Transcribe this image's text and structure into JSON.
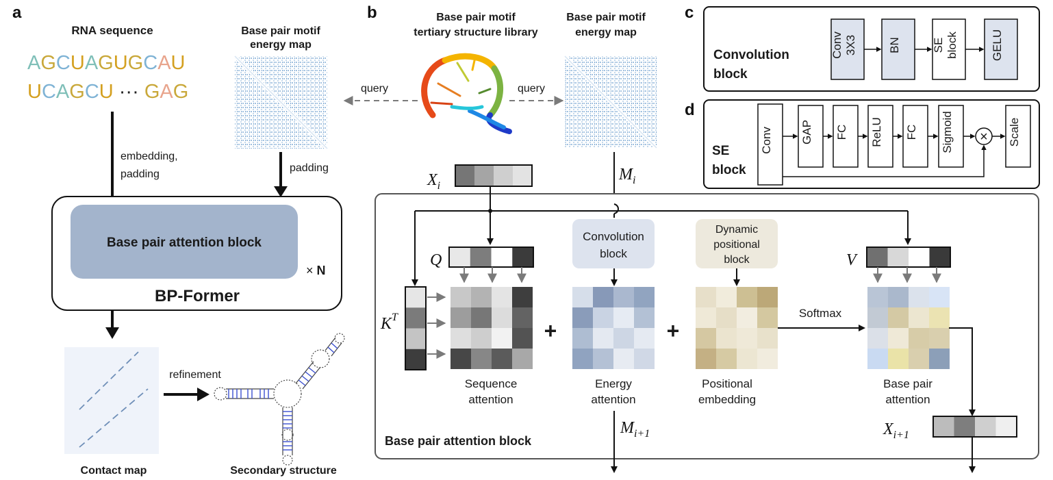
{
  "panels": {
    "a": "a",
    "b": "b",
    "c": "c",
    "d": "d"
  },
  "panel_a": {
    "rna_title": "RNA sequence",
    "seq_line1": [
      {
        "ch": "A",
        "color": "#7fbfb8"
      },
      {
        "ch": "G",
        "color": "#c9a83a"
      },
      {
        "ch": "C",
        "color": "#7fb3d5"
      },
      {
        "ch": "U",
        "color": "#d4a020"
      },
      {
        "ch": "A",
        "color": "#7fbfb8"
      },
      {
        "ch": "G",
        "color": "#c9a83a"
      },
      {
        "ch": "U",
        "color": "#d4a020"
      },
      {
        "ch": "G",
        "color": "#c9a83a"
      },
      {
        "ch": "C",
        "color": "#7fb3d5"
      },
      {
        "ch": "A",
        "color": "#e8a48c"
      },
      {
        "ch": "U",
        "color": "#d4a020"
      }
    ],
    "seq_line2": [
      {
        "ch": "U",
        "color": "#d4a020"
      },
      {
        "ch": "C",
        "color": "#7fb3d5"
      },
      {
        "ch": "A",
        "color": "#7fbfb8"
      },
      {
        "ch": "G",
        "color": "#c9a83a"
      },
      {
        "ch": "C",
        "color": "#7fb3d5"
      },
      {
        "ch": "U",
        "color": "#d4a020"
      },
      {
        "ch": " ··· ",
        "color": "#222222"
      },
      {
        "ch": "G",
        "color": "#c9a83a"
      },
      {
        "ch": "A",
        "color": "#e8a48c"
      },
      {
        "ch": "G",
        "color": "#c9a83a"
      }
    ],
    "energy_map_title_1": "Base pair motif",
    "energy_map_title_2": "energy map",
    "embedding_1": "embedding,",
    "embedding_2": "padding",
    "padding": "padding",
    "attention_block": "Base pair attention block",
    "times_n": "× ",
    "n": "N",
    "bpformer": "BP-Former",
    "refinement": "refinement",
    "contact_map": "Contact map",
    "secondary_structure": "Secondary structure",
    "query_left": "query"
  },
  "panel_b": {
    "library_title_1": "Base pair motif",
    "library_title_2": "tertiary structure library",
    "energy_map_title_1": "Base pair motif",
    "energy_map_title_2": "energy map",
    "query_right": "query",
    "xi": "X",
    "xi_sub": "i",
    "mi": "M",
    "mi_sub": "i",
    "q": "Q",
    "kt": "K",
    "kt_sup": "T",
    "v": "V",
    "conv_block_1": "Convolution",
    "conv_block_2": "block",
    "dyn_1": "Dynamic",
    "dyn_2": "positional",
    "dyn_3": "block",
    "softmax": "Softmax",
    "seq_att_1": "Sequence",
    "seq_att_2": "attention",
    "energy_att_1": "Energy",
    "energy_att_2": "attention",
    "pos_emb_1": "Positional",
    "pos_emb_2": "embedding",
    "bp_att_1": "Base pair",
    "bp_att_2": "attention",
    "mi1": "M",
    "mi1_sub": "i+1",
    "xi1": "X",
    "xi1_sub": "i+1",
    "block_title": "Base pair attention block",
    "plus": "+",
    "xi_cells": [
      "#767676",
      "#a5a5a5",
      "#cfcfcf",
      "#e3e3e3"
    ],
    "q_cells": [
      "#e8e8e8",
      "#7d7d7d",
      "#ffffff",
      "#3b3b3b"
    ],
    "k_cells": [
      "#e6e6e6",
      "#7b7b7b",
      "#c4c4c4",
      "#3d3d3d"
    ],
    "v_cells": [
      "#707070",
      "#d8d8d8",
      "#ffffff",
      "#3a3a3a"
    ],
    "xi1_cells": [
      "#bcbcbc",
      "#7e7e7e",
      "#cfcfcf",
      "#efefef"
    ],
    "seq_matrix": [
      [
        "#c8c8c8",
        "#b3b3b3",
        "#e4e4e4",
        "#3e3e3e"
      ],
      [
        "#9d9d9d",
        "#777777",
        "#dcdcdc",
        "#636363"
      ],
      [
        "#dedede",
        "#cecece",
        "#f2f2f2",
        "#535353"
      ],
      [
        "#474747",
        "#878787",
        "#5b5b5b",
        "#a8a8a8"
      ]
    ],
    "energy_matrix": [
      [
        "#d6deea",
        "#8799b8",
        "#aab8cf",
        "#91a4c0"
      ],
      [
        "#8a9cba",
        "#c9d3e3",
        "#e6ebf3",
        "#b3c1d5"
      ],
      [
        "#aebdd2",
        "#e4e9f1",
        "#cdd6e4",
        "#e5eaf2"
      ],
      [
        "#90a3c0",
        "#b4c1d5",
        "#e7ebf2",
        "#d0d8e6"
      ]
    ],
    "pos_matrix": [
      [
        "#e7dfc9",
        "#f1ecdc",
        "#cdbf93",
        "#bca878"
      ],
      [
        "#efe9d7",
        "#e6dec7",
        "#f2ede0",
        "#d4c8a0"
      ],
      [
        "#d5c8a2",
        "#ebe4cf",
        "#efe9d8",
        "#e8e1cb"
      ],
      [
        "#c4b084",
        "#d6caa3",
        "#ece6d2",
        "#f1ecde"
      ]
    ],
    "bp_matrix": [
      [
        "#b9c5d6",
        "#aab8cc",
        "#dbe2ec",
        "#d8e4f6"
      ],
      [
        "#c2cad4",
        "#d4c9a4",
        "#ece6d0",
        "#ebe3b2"
      ],
      [
        "#dbe0e8",
        "#efe9d7",
        "#d7cca8",
        "#d9cfae"
      ],
      [
        "#c9daf2",
        "#eae3a8",
        "#d9cfae",
        "#8c9fb8"
      ]
    ]
  },
  "panel_c": {
    "title_1": "Convolution",
    "title_2": "block",
    "items": [
      {
        "lines": [
          "Conv",
          "3X3"
        ],
        "shaded": true
      },
      {
        "lines": [
          "BN"
        ],
        "shaded": true
      },
      {
        "lines": [
          "SE",
          "block"
        ],
        "shaded": false
      },
      {
        "lines": [
          "GELU"
        ],
        "shaded": true
      }
    ]
  },
  "panel_d": {
    "title_1": "SE",
    "title_2": "block",
    "items": [
      "Conv",
      "GAP",
      "FC",
      "ReLU",
      "FC",
      "Sigmoid",
      "Scale"
    ],
    "mult": "×"
  },
  "colors": {
    "attention_block_fill": "#a3b4cc",
    "bluebox_fill": "#dde3ee",
    "dynbox_fill": "#ede9dd",
    "map_line": "#3d7ab8"
  }
}
